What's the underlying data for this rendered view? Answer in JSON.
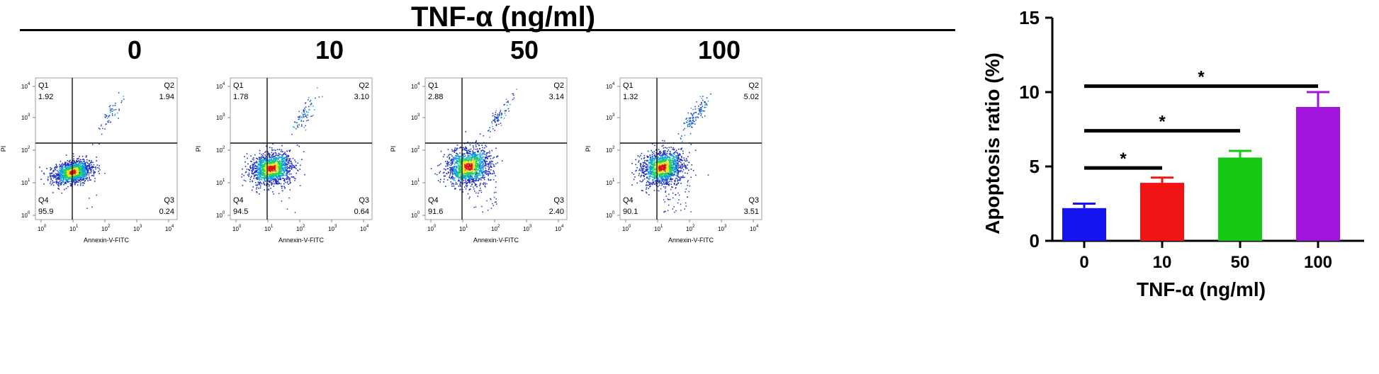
{
  "figure": {
    "title": "TNF-α (ng/ml)"
  },
  "flow_panels": [
    {
      "concentration": "0",
      "q1": "1.92",
      "q2": "1.94",
      "q3": "0.24",
      "q4": "95.9",
      "q2_density": 0.25,
      "q3_density": 0.05,
      "spread": 0.8
    },
    {
      "concentration": "10",
      "q1": "1.78",
      "q2": "3.10",
      "q3": "0.64",
      "q4": "94.5",
      "q2_density": 0.35,
      "q3_density": 0.1,
      "spread": 1.0
    },
    {
      "concentration": "50",
      "q1": "2.88",
      "q2": "3.14",
      "q3": "2.40",
      "q4": "91.6",
      "q2_density": 0.4,
      "q3_density": 0.3,
      "spread": 1.1
    },
    {
      "concentration": "100",
      "q1": "1.32",
      "q2": "5.02",
      "q3": "3.51",
      "q4": "90.1",
      "q2_density": 0.55,
      "q3_density": 0.4,
      "spread": 1.05
    }
  ],
  "flow_axes": {
    "xlabel": "Annexin-V-FITC",
    "ylabel": "PI",
    "ticks": [
      "10",
      "10",
      "10",
      "10",
      "10"
    ],
    "exponents": [
      "0",
      "1",
      "2",
      "3",
      "4"
    ],
    "quadrant_labels": [
      "Q1",
      "Q2",
      "Q3",
      "Q4"
    ]
  },
  "chart_data": {
    "type": "bar",
    "categories": [
      "0",
      "10",
      "50",
      "100"
    ],
    "values": [
      2.2,
      3.9,
      5.6,
      9.0
    ],
    "errors": [
      0.3,
      0.35,
      0.45,
      1.0
    ],
    "colors": [
      "#1414f0",
      "#f01414",
      "#14c814",
      "#a014dc"
    ],
    "xlabel": "TNF-α (ng/ml)",
    "ylabel": "Apoptosis ratio (%)",
    "ylim": [
      0,
      15
    ],
    "yticks": [
      0,
      5,
      10,
      15
    ],
    "significance": [
      {
        "from": "0",
        "to": "10",
        "y": 4.9,
        "label": "*"
      },
      {
        "from": "0",
        "to": "50",
        "y": 7.4,
        "label": "*"
      },
      {
        "from": "0",
        "to": "100",
        "y": 10.4,
        "label": "*"
      }
    ]
  }
}
